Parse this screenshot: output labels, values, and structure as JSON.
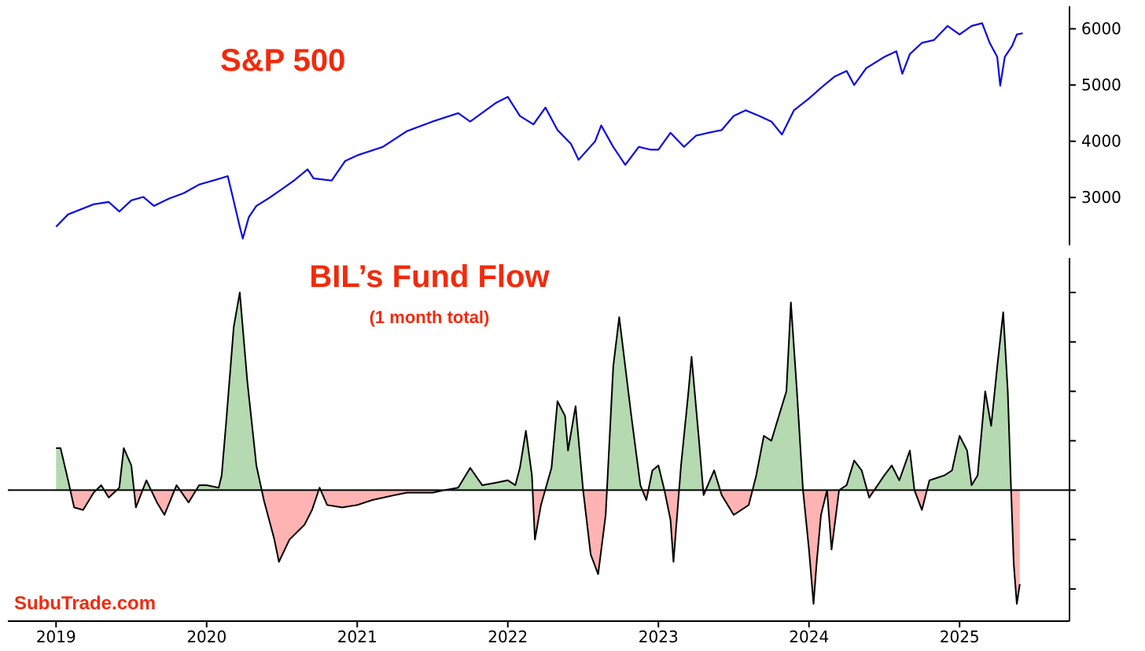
{
  "colors": {
    "accent_text": "#f22a0c",
    "sp500_line": "#0a0ae6",
    "flow_line": "#000000",
    "positive_fill": "#b5d9b1",
    "negative_fill": "#ffb3b3"
  },
  "watermark": "SubuTrade.com",
  "chart_data": [
    {
      "type": "line",
      "title": "S&P 500",
      "xlabel": "",
      "ylabel": "",
      "x_unit": "year",
      "xlim": [
        2018.68,
        2025.73
      ],
      "ylim": [
        2150,
        6400
      ],
      "yticks": [
        3000,
        4000,
        5000,
        6000
      ],
      "ytick_labels": [
        "3000",
        "4000",
        "5000",
        "6000"
      ],
      "grid": false,
      "axis_side": "right",
      "series": [
        {
          "values": [
            [
              2019.0,
              2480
            ],
            [
              2019.08,
              2700
            ],
            [
              2019.25,
              2880
            ],
            [
              2019.35,
              2920
            ],
            [
              2019.42,
              2750
            ],
            [
              2019.5,
              2950
            ],
            [
              2019.58,
              3010
            ],
            [
              2019.65,
              2850
            ],
            [
              2019.75,
              2980
            ],
            [
              2019.85,
              3080
            ],
            [
              2019.95,
              3230
            ],
            [
              2020.08,
              3330
            ],
            [
              2020.14,
              3380
            ],
            [
              2020.17,
              3050
            ],
            [
              2020.22,
              2480
            ],
            [
              2020.24,
              2270
            ],
            [
              2020.28,
              2650
            ],
            [
              2020.33,
              2850
            ],
            [
              2020.42,
              3000
            ],
            [
              2020.5,
              3150
            ],
            [
              2020.58,
              3300
            ],
            [
              2020.67,
              3500
            ],
            [
              2020.71,
              3340
            ],
            [
              2020.83,
              3300
            ],
            [
              2020.92,
              3650
            ],
            [
              2021.0,
              3750
            ],
            [
              2021.17,
              3900
            ],
            [
              2021.33,
              4180
            ],
            [
              2021.5,
              4350
            ],
            [
              2021.67,
              4500
            ],
            [
              2021.75,
              4350
            ],
            [
              2021.92,
              4680
            ],
            [
              2022.0,
              4790
            ],
            [
              2022.08,
              4450
            ],
            [
              2022.17,
              4300
            ],
            [
              2022.25,
              4600
            ],
            [
              2022.33,
              4200
            ],
            [
              2022.42,
              3950
            ],
            [
              2022.47,
              3670
            ],
            [
              2022.58,
              4000
            ],
            [
              2022.62,
              4280
            ],
            [
              2022.7,
              3900
            ],
            [
              2022.78,
              3580
            ],
            [
              2022.87,
              3900
            ],
            [
              2022.95,
              3850
            ],
            [
              2023.0,
              3850
            ],
            [
              2023.08,
              4150
            ],
            [
              2023.17,
              3900
            ],
            [
              2023.25,
              4100
            ],
            [
              2023.33,
              4150
            ],
            [
              2023.42,
              4200
            ],
            [
              2023.5,
              4450
            ],
            [
              2023.58,
              4550
            ],
            [
              2023.67,
              4450
            ],
            [
              2023.75,
              4350
            ],
            [
              2023.82,
              4120
            ],
            [
              2023.9,
              4550
            ],
            [
              2024.0,
              4760
            ],
            [
              2024.08,
              4950
            ],
            [
              2024.17,
              5150
            ],
            [
              2024.25,
              5250
            ],
            [
              2024.3,
              5000
            ],
            [
              2024.38,
              5300
            ],
            [
              2024.5,
              5500
            ],
            [
              2024.58,
              5600
            ],
            [
              2024.62,
              5200
            ],
            [
              2024.67,
              5550
            ],
            [
              2024.75,
              5750
            ],
            [
              2024.83,
              5800
            ],
            [
              2024.92,
              6050
            ],
            [
              2025.0,
              5900
            ],
            [
              2025.08,
              6050
            ],
            [
              2025.15,
              6100
            ],
            [
              2025.2,
              5750
            ],
            [
              2025.25,
              5500
            ],
            [
              2025.27,
              4990
            ],
            [
              2025.3,
              5500
            ],
            [
              2025.35,
              5700
            ],
            [
              2025.38,
              5900
            ],
            [
              2025.42,
              5920
            ]
          ]
        }
      ]
    },
    {
      "type": "area",
      "title": "BIL’s Fund Flow",
      "subtitle": "(1 month total)",
      "xlabel": "",
      "ylabel": "",
      "x_unit": "year",
      "xlim": [
        2018.68,
        2025.73
      ],
      "ylim": [
        -2.65,
        4.7
      ],
      "xticks": [
        2019,
        2020,
        2021,
        2022,
        2023,
        2024,
        2025
      ],
      "xtick_labels": [
        "2019",
        "2020",
        "2021",
        "2022",
        "2023",
        "2024",
        "2025"
      ],
      "yticks": [
        -2,
        -1,
        0,
        1,
        2,
        3,
        4
      ],
      "ytick_labels": [],
      "zero_line": true,
      "grid": false,
      "axis_side": "right",
      "series": [
        {
          "values": [
            [
              2019.0,
              0.85
            ],
            [
              2019.03,
              0.85
            ],
            [
              2019.08,
              0.2
            ],
            [
              2019.12,
              -0.35
            ],
            [
              2019.18,
              -0.4
            ],
            [
              2019.25,
              -0.05
            ],
            [
              2019.3,
              0.1
            ],
            [
              2019.35,
              -0.15
            ],
            [
              2019.42,
              0.05
            ],
            [
              2019.45,
              0.85
            ],
            [
              2019.5,
              0.5
            ],
            [
              2019.53,
              -0.35
            ],
            [
              2019.6,
              0.2
            ],
            [
              2019.67,
              -0.25
            ],
            [
              2019.72,
              -0.5
            ],
            [
              2019.8,
              0.1
            ],
            [
              2019.88,
              -0.25
            ],
            [
              2019.95,
              0.1
            ],
            [
              2020.0,
              0.1
            ],
            [
              2020.08,
              0.05
            ],
            [
              2020.1,
              0.3
            ],
            [
              2020.13,
              1.4
            ],
            [
              2020.18,
              3.3
            ],
            [
              2020.22,
              4.0
            ],
            [
              2020.27,
              2.2
            ],
            [
              2020.33,
              0.5
            ],
            [
              2020.38,
              -0.2
            ],
            [
              2020.45,
              -1.0
            ],
            [
              2020.48,
              -1.45
            ],
            [
              2020.55,
              -1.0
            ],
            [
              2020.65,
              -0.7
            ],
            [
              2020.7,
              -0.4
            ],
            [
              2020.75,
              0.05
            ],
            [
              2020.8,
              -0.3
            ],
            [
              2020.9,
              -0.35
            ],
            [
              2021.0,
              -0.3
            ],
            [
              2021.1,
              -0.2
            ],
            [
              2021.25,
              -0.1
            ],
            [
              2021.33,
              -0.05
            ],
            [
              2021.5,
              -0.05
            ],
            [
              2021.58,
              0.0
            ],
            [
              2021.67,
              0.05
            ],
            [
              2021.75,
              0.45
            ],
            [
              2021.83,
              0.1
            ],
            [
              2021.92,
              0.15
            ],
            [
              2022.0,
              0.2
            ],
            [
              2022.05,
              0.1
            ],
            [
              2022.08,
              0.45
            ],
            [
              2022.12,
              1.2
            ],
            [
              2022.16,
              0.3
            ],
            [
              2022.17,
              -0.35
            ],
            [
              2022.18,
              -1.0
            ],
            [
              2022.22,
              -0.3
            ],
            [
              2022.29,
              0.45
            ],
            [
              2022.33,
              1.8
            ],
            [
              2022.38,
              1.5
            ],
            [
              2022.4,
              0.8
            ],
            [
              2022.45,
              1.7
            ],
            [
              2022.5,
              0.0
            ],
            [
              2022.55,
              -1.3
            ],
            [
              2022.6,
              -1.7
            ],
            [
              2022.65,
              -0.5
            ],
            [
              2022.7,
              2.5
            ],
            [
              2022.74,
              3.5
            ],
            [
              2022.78,
              2.5
            ],
            [
              2022.82,
              1.5
            ],
            [
              2022.88,
              0.1
            ],
            [
              2022.92,
              -0.2
            ],
            [
              2022.96,
              0.4
            ],
            [
              2023.0,
              0.5
            ],
            [
              2023.04,
              0.0
            ],
            [
              2023.08,
              -0.6
            ],
            [
              2023.1,
              -1.45
            ],
            [
              2023.15,
              0.5
            ],
            [
              2023.2,
              2.0
            ],
            [
              2023.22,
              2.7
            ],
            [
              2023.27,
              1.0
            ],
            [
              2023.3,
              -0.1
            ],
            [
              2023.37,
              0.4
            ],
            [
              2023.42,
              -0.1
            ],
            [
              2023.5,
              -0.5
            ],
            [
              2023.6,
              -0.3
            ],
            [
              2023.65,
              0.3
            ],
            [
              2023.7,
              1.1
            ],
            [
              2023.75,
              1.0
            ],
            [
              2023.8,
              1.5
            ],
            [
              2023.85,
              2.0
            ],
            [
              2023.88,
              3.8
            ],
            [
              2023.92,
              2.0
            ],
            [
              2023.96,
              0.0
            ],
            [
              2024.0,
              -1.2
            ],
            [
              2024.03,
              -2.3
            ],
            [
              2024.05,
              -1.5
            ],
            [
              2024.08,
              -0.5
            ],
            [
              2024.12,
              0.0
            ],
            [
              2024.15,
              -1.2
            ],
            [
              2024.2,
              0.0
            ],
            [
              2024.25,
              0.1
            ],
            [
              2024.3,
              0.6
            ],
            [
              2024.35,
              0.4
            ],
            [
              2024.4,
              -0.15
            ],
            [
              2024.5,
              0.3
            ],
            [
              2024.55,
              0.5
            ],
            [
              2024.6,
              0.2
            ],
            [
              2024.67,
              0.8
            ],
            [
              2024.7,
              0.0
            ],
            [
              2024.75,
              -0.4
            ],
            [
              2024.8,
              0.2
            ],
            [
              2024.9,
              0.3
            ],
            [
              2024.95,
              0.4
            ],
            [
              2025.0,
              1.1
            ],
            [
              2025.05,
              0.8
            ],
            [
              2025.08,
              0.1
            ],
            [
              2025.12,
              0.3
            ],
            [
              2025.17,
              2.0
            ],
            [
              2025.21,
              1.3
            ],
            [
              2025.25,
              2.5
            ],
            [
              2025.29,
              3.6
            ],
            [
              2025.32,
              2.0
            ],
            [
              2025.34,
              0.2
            ],
            [
              2025.36,
              -1.5
            ],
            [
              2025.38,
              -2.3
            ],
            [
              2025.4,
              -1.9
            ]
          ]
        }
      ]
    }
  ]
}
